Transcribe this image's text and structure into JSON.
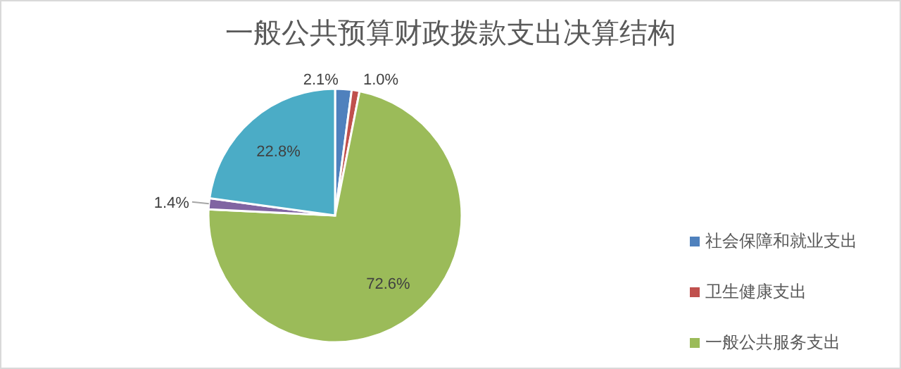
{
  "chart_data": {
    "type": "pie",
    "title": "一般公共预算财政拨款支出决算结构",
    "categories": [
      "社会保障和就业支出",
      "卫生健康支出",
      "一般公共服务支出",
      null,
      null
    ],
    "values": [
      2.1,
      1.0,
      72.6,
      1.4,
      22.8
    ],
    "colors": [
      "#4f81bd",
      "#c0504d",
      "#9bbb59",
      "#8064a2",
      "#4bacc6"
    ],
    "value_labels": [
      "2.1%",
      "1.0%",
      "72.6%",
      "1.4%",
      "22.8%"
    ],
    "legend": "right"
  }
}
